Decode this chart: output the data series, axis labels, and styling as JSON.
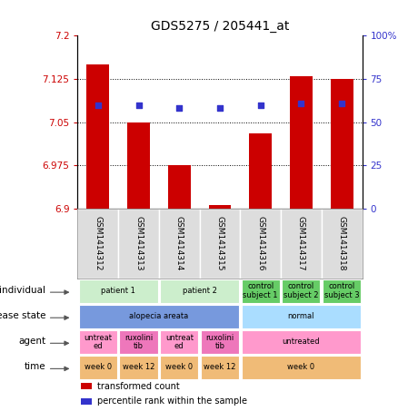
{
  "title": "GDS5275 / 205441_at",
  "samples": [
    "GSM1414312",
    "GSM1414313",
    "GSM1414314",
    "GSM1414315",
    "GSM1414316",
    "GSM1414317",
    "GSM1414318"
  ],
  "red_values": [
    7.15,
    7.05,
    6.975,
    6.905,
    7.03,
    7.13,
    7.125
  ],
  "blue_values": [
    60,
    60,
    58,
    58,
    60,
    61,
    61
  ],
  "ylim_left": [
    6.9,
    7.2
  ],
  "ylim_right": [
    0,
    100
  ],
  "yticks_left": [
    6.9,
    6.975,
    7.05,
    7.125,
    7.2
  ],
  "yticks_right": [
    0,
    25,
    50,
    75,
    100
  ],
  "ytick_labels_left": [
    "6.9",
    "6.975",
    "7.05",
    "7.125",
    "7.2"
  ],
  "ytick_labels_right": [
    "0",
    "25",
    "50",
    "75",
    "100%"
  ],
  "hlines": [
    6.975,
    7.05,
    7.125
  ],
  "bar_color": "#cc0000",
  "dot_color": "#3333cc",
  "annotation_rows": [
    {
      "label": "individual",
      "cells": [
        {
          "text": "patient 1",
          "colspan": 2,
          "color": "#cceecc"
        },
        {
          "text": "patient 2",
          "colspan": 2,
          "color": "#cceecc"
        },
        {
          "text": "control\nsubject 1",
          "colspan": 1,
          "color": "#66cc66"
        },
        {
          "text": "control\nsubject 2",
          "colspan": 1,
          "color": "#66cc66"
        },
        {
          "text": "control\nsubject 3",
          "colspan": 1,
          "color": "#66cc66"
        }
      ]
    },
    {
      "label": "disease state",
      "cells": [
        {
          "text": "alopecia areata",
          "colspan": 4,
          "color": "#7799dd"
        },
        {
          "text": "normal",
          "colspan": 3,
          "color": "#aaddff"
        }
      ]
    },
    {
      "label": "agent",
      "cells": [
        {
          "text": "untreat\ned",
          "colspan": 1,
          "color": "#ff99cc"
        },
        {
          "text": "ruxolini\ntib",
          "colspan": 1,
          "color": "#ee77bb"
        },
        {
          "text": "untreat\ned",
          "colspan": 1,
          "color": "#ff99cc"
        },
        {
          "text": "ruxolini\ntib",
          "colspan": 1,
          "color": "#ee77bb"
        },
        {
          "text": "untreated",
          "colspan": 3,
          "color": "#ff99cc"
        }
      ]
    },
    {
      "label": "time",
      "cells": [
        {
          "text": "week 0",
          "colspan": 1,
          "color": "#f0bb77"
        },
        {
          "text": "week 12",
          "colspan": 1,
          "color": "#f0bb77"
        },
        {
          "text": "week 0",
          "colspan": 1,
          "color": "#f0bb77"
        },
        {
          "text": "week 12",
          "colspan": 1,
          "color": "#f0bb77"
        },
        {
          "text": "week 0",
          "colspan": 3,
          "color": "#f0bb77"
        }
      ]
    }
  ],
  "legend": [
    {
      "color": "#cc0000",
      "label": "transformed count"
    },
    {
      "color": "#3333cc",
      "label": "percentile rank within the sample"
    }
  ],
  "sample_label_bg": "#dddddd"
}
